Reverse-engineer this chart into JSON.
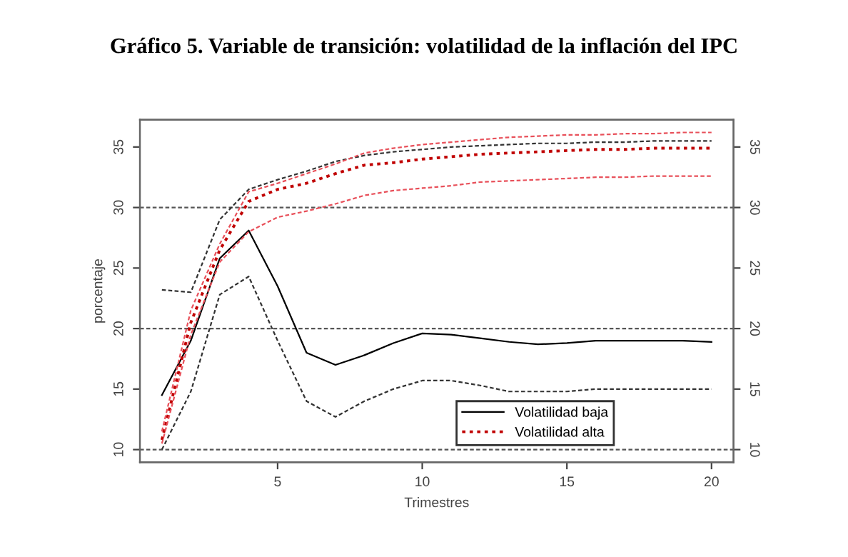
{
  "chart_data": {
    "type": "line",
    "title": "Gráfico 5. Variable de transición: volatilidad de la inflación del IPC",
    "xlabel": "Trimestres",
    "ylabel": "porcentaje",
    "x": [
      1,
      2,
      3,
      4,
      5,
      6,
      7,
      8,
      9,
      10,
      11,
      12,
      13,
      14,
      15,
      16,
      17,
      18,
      19,
      20
    ],
    "series": [
      {
        "name": "Volatilidad baja",
        "color": "#000000",
        "line_style": "solid",
        "values": [
          14.5,
          19,
          25.8,
          28.1,
          23.5,
          18,
          17,
          17.8,
          18.8,
          19.6,
          19.5,
          19.2,
          18.9,
          18.7,
          18.8,
          19,
          19,
          19,
          19,
          18.9
        ]
      },
      {
        "color": "#333333",
        "line_style": "dashed",
        "values": [
          23.2,
          23,
          29,
          31.5,
          32.3,
          33,
          33.8,
          34.3,
          34.6,
          34.8,
          35,
          35.1,
          35.2,
          35.3,
          35.3,
          35.4,
          35.4,
          35.5,
          35.5,
          35.5
        ]
      },
      {
        "color": "#333333",
        "line_style": "dashed",
        "values": [
          10,
          14.8,
          22.8,
          24.3,
          19,
          14,
          12.7,
          14,
          15,
          15.7,
          15.7,
          15.3,
          14.8,
          14.8,
          14.8,
          15,
          15,
          15,
          15,
          15
        ]
      },
      {
        "name": "Volatilidad alta",
        "color": "#c00000",
        "line_style": "dotted",
        "values": [
          10.8,
          20.5,
          26.5,
          30.5,
          31.5,
          32,
          32.8,
          33.5,
          33.7,
          34,
          34.2,
          34.4,
          34.5,
          34.6,
          34.7,
          34.8,
          34.8,
          34.9,
          34.9,
          34.9
        ]
      },
      {
        "color": "#e8505a",
        "line_style": "dashed",
        "values": [
          11.5,
          21.5,
          27,
          31.3,
          32,
          32.8,
          33.6,
          34.5,
          34.9,
          35.2,
          35.4,
          35.6,
          35.8,
          35.9,
          36,
          36,
          36.1,
          36.1,
          36.2,
          36.2
        ]
      },
      {
        "color": "#e8505a",
        "line_style": "dashed",
        "values": [
          10.5,
          19.5,
          25.5,
          28,
          29.2,
          29.7,
          30.3,
          31,
          31.4,
          31.6,
          31.8,
          32.1,
          32.2,
          32.3,
          32.4,
          32.5,
          32.5,
          32.6,
          32.6,
          32.6
        ]
      }
    ],
    "xlim": [
      0.24,
      20.76
    ],
    "xticks": [
      5,
      10,
      15,
      20
    ],
    "ylim": [
      8.95,
      37.25
    ],
    "yticks": [
      10,
      15,
      20,
      25,
      30,
      35
    ],
    "y2lim": [
      8.95,
      37.25
    ],
    "y2ticks": [
      10,
      15,
      20,
      25,
      30,
      35
    ],
    "ref_lines": [
      {
        "axis": "y",
        "value": 10,
        "color": "#555555",
        "line_style": "dashed"
      },
      {
        "axis": "y",
        "value": 20,
        "color": "#555555",
        "line_style": "dashed"
      },
      {
        "axis": "y",
        "value": 30,
        "color": "#555555",
        "line_style": "dashed"
      }
    ],
    "legend": "bottom right",
    "grid": false
  }
}
